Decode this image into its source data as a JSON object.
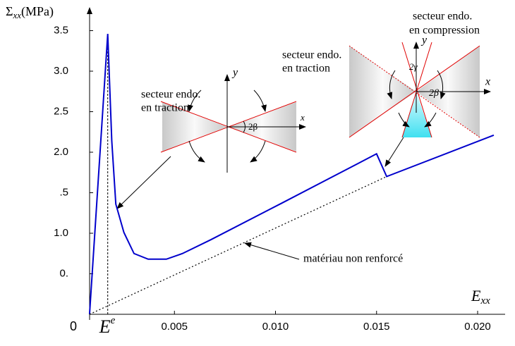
{
  "chart_data": {
    "type": "line",
    "y_label": {
      "symbol": "Σ",
      "subscript": "xx",
      "unit": "(MPa)"
    },
    "x_label": {
      "symbol": "E",
      "subscript": "xx"
    },
    "strain_marker": {
      "symbol": "E",
      "superscript": "e",
      "x": 0.0017
    },
    "xlim": [
      0,
      0.0215
    ],
    "ylim": [
      0,
      3.8
    ],
    "xticks": [
      0,
      0.005,
      {
        "value": 0.01,
        "label": "0.010"
      },
      0.015,
      {
        "value": 0.02,
        "label": "0.020"
      }
    ],
    "yticks": [
      {
        "value": 0.5,
        "label": "0."
      },
      {
        "value": 1,
        "label": "1.0"
      },
      {
        "value": 1.5,
        "label": ".5"
      },
      {
        "value": 2,
        "label": "2.0"
      },
      2.5,
      {
        "value": 3,
        "label": "3.0"
      },
      3.5
    ],
    "series": [
      {
        "color": "#0000cc",
        "dashed": false,
        "x": [
          0.0008,
          0.0017,
          0.0019,
          0.0021,
          0.0025,
          0.003,
          0.0037,
          0.0046,
          0.0054,
          0.0068,
          0.0103,
          0.015,
          0.0155,
          0.0208
        ],
        "values": [
          0,
          3.46,
          2.14,
          1.36,
          1.01,
          0.75,
          0.68,
          0.68,
          0.75,
          0.92,
          1.37,
          1.98,
          1.7,
          2.21
        ]
      },
      {
        "name": "matériau non renforcé",
        "color": "#000000",
        "dashed": true,
        "x": [
          0.0008,
          0.0155
        ],
        "values": [
          0,
          1.7
        ]
      }
    ],
    "annotations": {
      "traction_left": [
        "secteur endo.",
        "en traction"
      ],
      "traction_right": [
        "secteur endo.",
        " en traction"
      ],
      "compression": [
        "secteur endo.",
        "en compression"
      ],
      "inset1": {
        "y": "y",
        "x": "x",
        "angle": "2β"
      },
      "inset2": {
        "y": "y",
        "x": "x",
        "angle_beta": "2β",
        "angle_gamma": "2γ"
      }
    }
  }
}
